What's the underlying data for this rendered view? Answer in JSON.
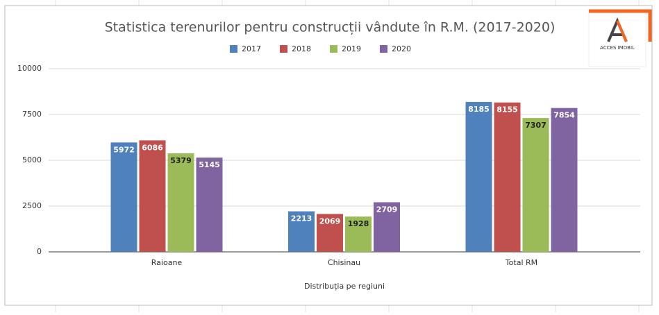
{
  "chart_data": {
    "type": "bar",
    "title": "Statistica terenurilor pentru construcții vândute în R.M. (2017-2020)",
    "x_label": "Distribuția pe regiuni",
    "categories": [
      "Raioane",
      "Chisinau",
      "Total RM"
    ],
    "series": [
      {
        "name": "2017",
        "color": "#4f81bd",
        "label_color": "#ffffff",
        "values": [
          5972,
          2213,
          8185
        ]
      },
      {
        "name": "2018",
        "color": "#c0504d",
        "label_color": "#ffffff",
        "values": [
          6086,
          2069,
          8155
        ]
      },
      {
        "name": "2019",
        "color": "#9bbb59",
        "label_color": "#222222",
        "values": [
          5379,
          1928,
          7307
        ]
      },
      {
        "name": "2020",
        "color": "#8064a2",
        "label_color": "#ffffff",
        "values": [
          5145,
          2709,
          7854
        ]
      }
    ],
    "ylim": [
      0,
      10000
    ],
    "yticks": [
      0,
      2500,
      5000,
      7500,
      10000
    ],
    "grid": true,
    "legend": "top"
  },
  "logo": {
    "text": "ACCES IMOBIL"
  }
}
